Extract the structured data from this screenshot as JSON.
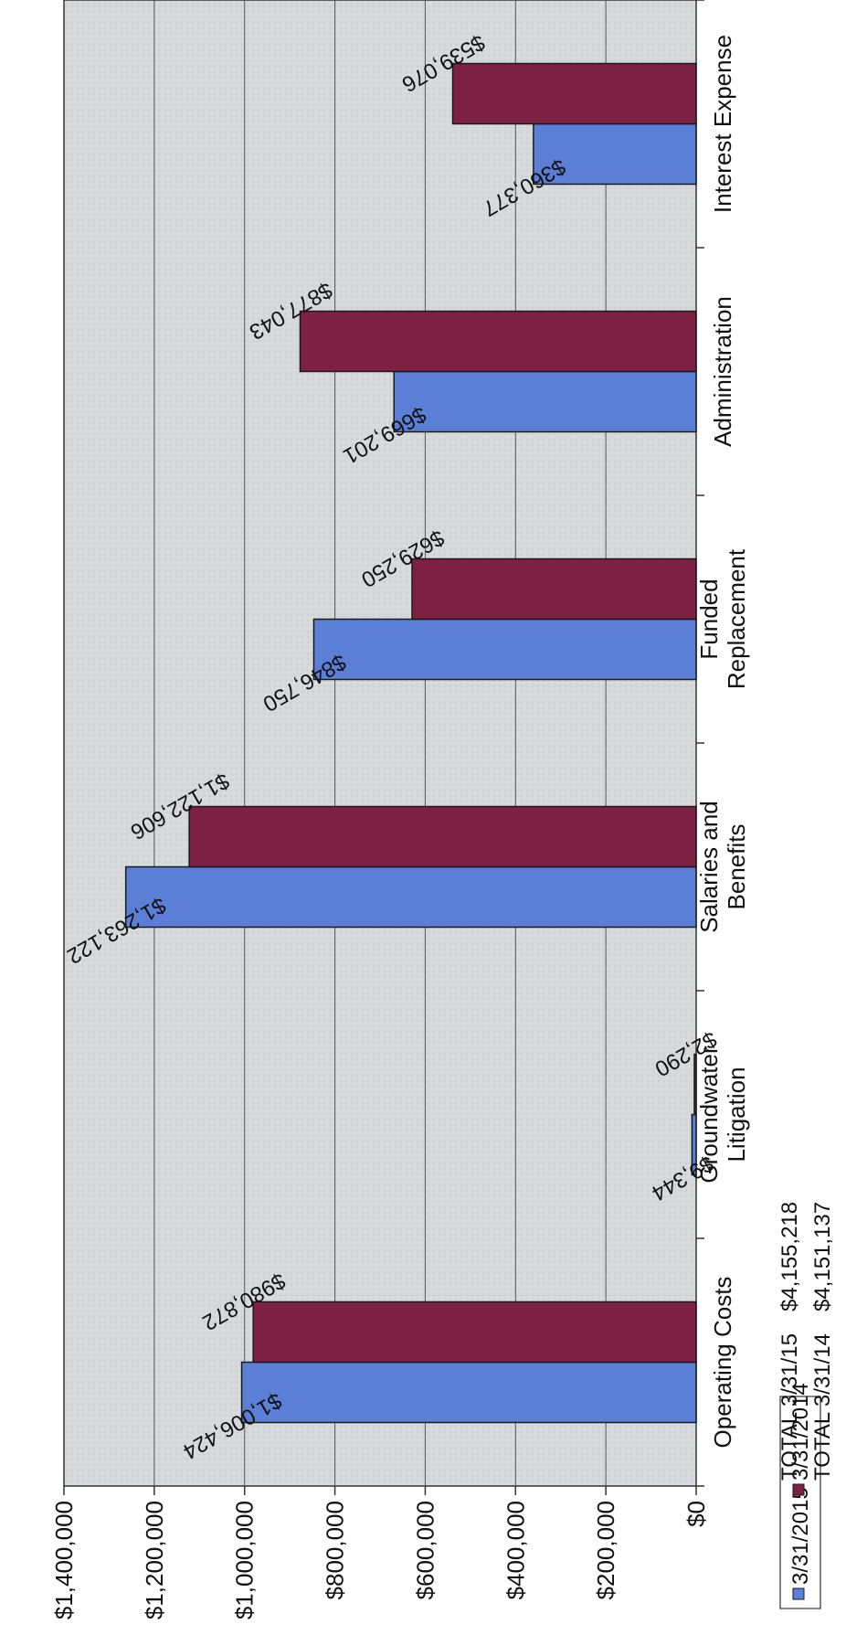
{
  "chart_data": {
    "type": "bar",
    "orientation": "rotated-90-clockwise",
    "categories": [
      [
        "Operating Costs"
      ],
      [
        "Groundwater",
        "Litigation"
      ],
      [
        "Salaries and",
        "Benefits"
      ],
      [
        "Funded",
        "Replacement"
      ],
      [
        "Administration"
      ],
      [
        "Interest Expense"
      ]
    ],
    "series": [
      {
        "name": "3/31/2015",
        "color": "#5b7fd6",
        "values": [
          1006424,
          9344,
          1263122,
          846750,
          669201,
          360377
        ],
        "labels": [
          "$1,006,424",
          "$9,344",
          "$1,263,122",
          "$846,750",
          "$669,201",
          "$360,377"
        ]
      },
      {
        "name": "3/31/2014",
        "color": "#7d2044",
        "values": [
          980872,
          2290,
          1122606,
          629250,
          877043,
          539076
        ],
        "labels": [
          "$980,872",
          "$2,290",
          "$1,122,606",
          "$629,250",
          "$877,043",
          "$539,076"
        ]
      }
    ],
    "yticks": [
      "$0",
      "$200,000",
      "$400,000",
      "$600,000",
      "$800,000",
      "$1,000,000",
      "$1,200,000",
      "$1,400,000"
    ],
    "ylim": [
      0,
      1400000
    ],
    "grid": true,
    "legend_position": "bottom",
    "totals": [
      {
        "label": "TOTAL 3/31/15",
        "value": "$4,155,218"
      },
      {
        "label": "TOTAL 3/31/14",
        "value": "$4,151,137"
      }
    ],
    "title": "",
    "xlabel": "",
    "ylabel": ""
  }
}
